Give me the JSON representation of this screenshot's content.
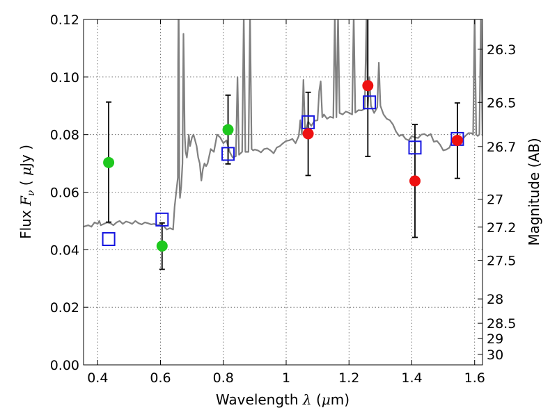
{
  "chart_data": {
    "type": "scatter",
    "title": "",
    "xlabel": {
      "prefix": "Wavelength  ",
      "var": "λ",
      "unit_open": " (",
      "unit_var": "μ",
      "unit_rest": "m)"
    },
    "ylabel": {
      "prefix": "Flux  ",
      "var": "F",
      "sub": "ν",
      "unit_open": "  (  ",
      "unit_var": "μ",
      "unit_rest": "Jy  )"
    },
    "y2label": "Magnitude (AB)",
    "xlim": [
      0.355,
      1.625
    ],
    "ylim": [
      0.0,
      0.12
    ],
    "grid": true,
    "x_ticks": [
      {
        "value": 0.4,
        "label": "0.4"
      },
      {
        "value": 0.6,
        "label": "0.6"
      },
      {
        "value": 0.8,
        "label": "0.8"
      },
      {
        "value": 1.0,
        "label": "1"
      },
      {
        "value": 1.2,
        "label": "1.2"
      },
      {
        "value": 1.4,
        "label": "1.4"
      },
      {
        "value": 1.6,
        "label": "1.6"
      }
    ],
    "y_ticks": [
      {
        "value": 0.0,
        "label": "0.00"
      },
      {
        "value": 0.02,
        "label": "0.02"
      },
      {
        "value": 0.04,
        "label": "0.04"
      },
      {
        "value": 0.06,
        "label": "0.06"
      },
      {
        "value": 0.08,
        "label": "0.08"
      },
      {
        "value": 0.1,
        "label": "0.10"
      },
      {
        "value": 0.12,
        "label": "0.12"
      }
    ],
    "mag_ticks": [
      {
        "value": 26.3,
        "label": "26.3"
      },
      {
        "value": 26.5,
        "label": "26.5"
      },
      {
        "value": 26.7,
        "label": "26.7"
      },
      {
        "value": 27.0,
        "label": "27"
      },
      {
        "value": 27.2,
        "label": "27.2"
      },
      {
        "value": 27.5,
        "label": "27.5"
      },
      {
        "value": 28.0,
        "label": "28"
      },
      {
        "value": 28.5,
        "label": "28.5"
      },
      {
        "value": 29.0,
        "label": "29"
      },
      {
        "value": 30.0,
        "label": "30"
      }
    ],
    "spectrum": {
      "color": "#808080",
      "x": [
        0.355,
        0.37,
        0.38,
        0.39,
        0.4,
        0.405,
        0.41,
        0.42,
        0.43,
        0.44,
        0.45,
        0.46,
        0.47,
        0.48,
        0.49,
        0.5,
        0.51,
        0.52,
        0.53,
        0.54,
        0.55,
        0.56,
        0.57,
        0.58,
        0.59,
        0.6,
        0.61,
        0.62,
        0.63,
        0.64,
        0.645,
        0.65,
        0.655,
        0.656,
        0.657,
        0.658,
        0.659,
        0.66,
        0.662,
        0.666,
        0.67,
        0.673,
        0.675,
        0.677,
        0.68,
        0.684,
        0.687,
        0.69,
        0.694,
        0.7,
        0.705,
        0.71,
        0.715,
        0.72,
        0.725,
        0.73,
        0.735,
        0.74,
        0.745,
        0.75,
        0.76,
        0.77,
        0.78,
        0.79,
        0.8,
        0.81,
        0.82,
        0.83,
        0.84,
        0.845,
        0.85,
        0.86,
        0.865,
        0.87,
        0.875,
        0.88,
        0.885,
        0.89,
        0.895,
        0.9,
        0.91,
        0.92,
        0.93,
        0.94,
        0.95,
        0.96,
        0.97,
        0.98,
        0.99,
        1.0,
        1.01,
        1.02,
        1.03,
        1.04,
        1.045,
        1.05,
        1.055,
        1.06,
        1.065,
        1.07,
        1.08,
        1.09,
        1.1,
        1.105,
        1.11,
        1.115,
        1.12,
        1.13,
        1.14,
        1.15,
        1.155,
        1.16,
        1.165,
        1.17,
        1.18,
        1.19,
        1.2,
        1.21,
        1.215,
        1.22,
        1.23,
        1.24,
        1.25,
        1.256,
        1.26,
        1.265,
        1.27,
        1.28,
        1.29,
        1.295,
        1.3,
        1.31,
        1.32,
        1.33,
        1.34,
        1.35,
        1.36,
        1.37,
        1.38,
        1.39,
        1.4,
        1.41,
        1.42,
        1.43,
        1.44,
        1.45,
        1.46,
        1.47,
        1.48,
        1.49,
        1.5,
        1.51,
        1.52,
        1.53,
        1.54,
        1.55,
        1.56,
        1.57,
        1.58,
        1.59,
        1.595,
        1.6,
        1.605,
        1.61,
        1.615,
        1.62,
        1.625
      ],
      "y": [
        0.048,
        0.0485,
        0.048,
        0.0495,
        0.049,
        0.05,
        0.0485,
        0.049,
        0.0495,
        0.0492,
        0.0485,
        0.0495,
        0.05,
        0.049,
        0.0498,
        0.0495,
        0.049,
        0.05,
        0.0492,
        0.0488,
        0.0495,
        0.0492,
        0.0488,
        0.049,
        0.0485,
        0.0488,
        0.0482,
        0.047,
        0.0475,
        0.047,
        0.055,
        0.06,
        0.065,
        0.105,
        0.122,
        0.122,
        0.1,
        0.065,
        0.058,
        0.062,
        0.07,
        0.115,
        0.1,
        0.08,
        0.074,
        0.072,
        0.075,
        0.08,
        0.076,
        0.079,
        0.08,
        0.078,
        0.076,
        0.072,
        0.07,
        0.064,
        0.068,
        0.07,
        0.069,
        0.07,
        0.075,
        0.074,
        0.08,
        0.079,
        0.077,
        0.078,
        0.074,
        0.072,
        0.0725,
        0.1,
        0.073,
        0.074,
        0.122,
        0.074,
        0.074,
        0.074,
        0.122,
        0.075,
        0.0745,
        0.0748,
        0.0745,
        0.0738,
        0.075,
        0.0752,
        0.0745,
        0.0735,
        0.0755,
        0.076,
        0.077,
        0.0778,
        0.078,
        0.0785,
        0.077,
        0.0795,
        0.085,
        0.08,
        0.099,
        0.082,
        0.0825,
        0.0845,
        0.083,
        0.0848,
        0.085,
        0.095,
        0.0985,
        0.086,
        0.087,
        0.0855,
        0.0862,
        0.0858,
        0.122,
        0.086,
        0.122,
        0.0875,
        0.087,
        0.088,
        0.0876,
        0.087,
        0.122,
        0.0876,
        0.0885,
        0.0884,
        0.089,
        0.122,
        0.09,
        0.1,
        0.09,
        0.0875,
        0.0895,
        0.105,
        0.09,
        0.087,
        0.0855,
        0.085,
        0.0835,
        0.081,
        0.0795,
        0.08,
        0.0785,
        0.078,
        0.0795,
        0.079,
        0.0788,
        0.08,
        0.0802,
        0.0795,
        0.0802,
        0.0775,
        0.0778,
        0.0765,
        0.0745,
        0.0748,
        0.0755,
        0.0785,
        0.0795,
        0.0775,
        0.0782,
        0.0795,
        0.0805,
        0.0805,
        0.08,
        0.122,
        0.08,
        0.0795,
        0.08,
        0.122,
        0.0795
      ]
    },
    "series": [
      {
        "name": "",
        "marker": "square-open",
        "color": "#1515e0",
        "points": [
          {
            "x": 0.435,
            "y": 0.0437
          },
          {
            "x": 0.605,
            "y": 0.0505
          },
          {
            "x": 0.815,
            "y": 0.0733
          },
          {
            "x": 1.07,
            "y": 0.0843
          },
          {
            "x": 1.265,
            "y": 0.0912
          },
          {
            "x": 1.41,
            "y": 0.0755
          },
          {
            "x": 1.545,
            "y": 0.0785
          }
        ]
      },
      {
        "name": "",
        "marker": "circle",
        "color": "#1ec81e",
        "points": [
          {
            "x": 0.435,
            "y": 0.0703,
            "yerr": [
              0.0496,
              0.0913
            ]
          },
          {
            "x": 0.605,
            "y": 0.0413,
            "yerr": [
              0.0332,
              0.0493
            ]
          },
          {
            "x": 0.815,
            "y": 0.0817,
            "yerr": [
              0.0698,
              0.0937
            ]
          }
        ]
      },
      {
        "name": "",
        "marker": "circle",
        "color": "#ee1111",
        "points": [
          {
            "x": 1.07,
            "y": 0.0803,
            "yerr": [
              0.0658,
              0.0947
            ]
          },
          {
            "x": 1.26,
            "y": 0.097,
            "yerr": [
              0.0724,
              0.122
            ]
          },
          {
            "x": 1.41,
            "y": 0.0639,
            "yerr": [
              0.0443,
              0.0835
            ]
          },
          {
            "x": 1.545,
            "y": 0.078,
            "yerr": [
              0.0648,
              0.091
            ]
          }
        ]
      }
    ]
  }
}
